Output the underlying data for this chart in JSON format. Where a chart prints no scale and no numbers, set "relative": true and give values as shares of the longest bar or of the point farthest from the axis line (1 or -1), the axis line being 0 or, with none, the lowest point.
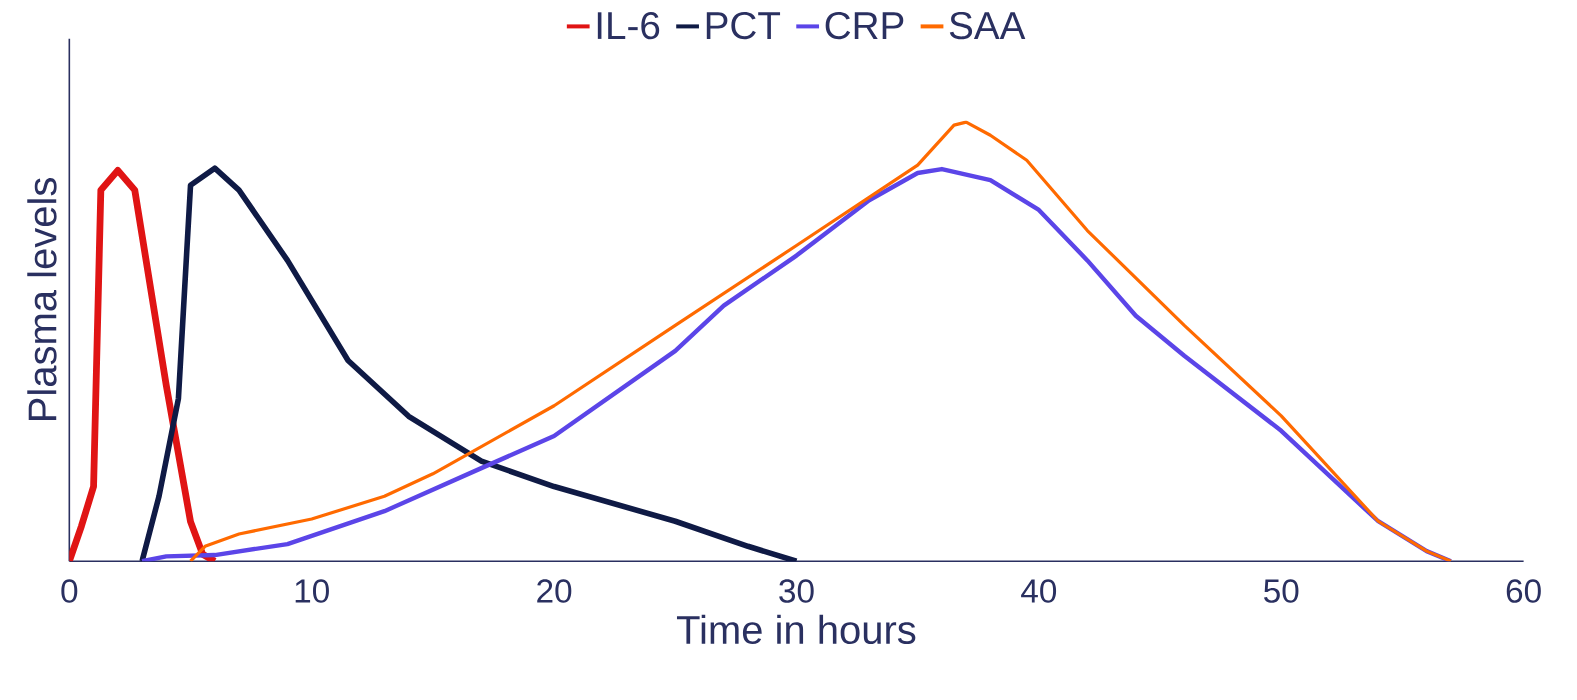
{
  "chart_data": {
    "type": "line",
    "xlabel": "Time in hours",
    "ylabel": "Plasma levels",
    "relative": true,
    "xlim": [
      0,
      60
    ],
    "xticks": [
      0,
      10,
      20,
      30,
      40,
      50,
      60
    ],
    "tick_labels": "x",
    "legend": "top",
    "grid": false,
    "marker": "none",
    "line_style": "solid",
    "series": [
      {
        "name": "IL-6",
        "color": "#e01414",
        "x": [
          0,
          0.5,
          1.0,
          1.3,
          2,
          2.7,
          4,
          5,
          5.5,
          6
        ],
        "values": [
          0,
          0.08,
          0.17,
          0.845,
          0.89,
          0.845,
          0.4,
          0.09,
          0.016,
          0
        ]
      },
      {
        "name": "PCT",
        "color": "#0f1a45",
        "x": [
          3,
          3.7,
          4.5,
          5,
          6,
          7,
          9,
          11.5,
          14,
          17,
          20,
          25,
          28,
          30
        ],
        "values": [
          0,
          0.148,
          0.37,
          0.856,
          0.895,
          0.845,
          0.685,
          0.457,
          0.33,
          0.228,
          0.17,
          0.091,
          0.034,
          0
        ]
      },
      {
        "name": "CRP",
        "color": "#5b45e8",
        "x": [
          3,
          4,
          6,
          9,
          13,
          17,
          20,
          25,
          27,
          30,
          33,
          35,
          36,
          38,
          40,
          42,
          44,
          46,
          50,
          54,
          56,
          57
        ],
        "values": [
          0,
          0.011,
          0.014,
          0.039,
          0.114,
          0.212,
          0.285,
          0.479,
          0.582,
          0.696,
          0.822,
          0.884,
          0.893,
          0.868,
          0.8,
          0.685,
          0.559,
          0.468,
          0.297,
          0.091,
          0.023,
          0
        ]
      },
      {
        "name": "SAA",
        "color": "#ff6a00",
        "x": [
          5,
          5.6,
          7,
          10,
          13,
          15,
          20,
          25,
          30,
          35,
          36.5,
          37,
          38,
          39.5,
          42,
          46,
          50,
          54,
          56,
          57
        ],
        "values": [
          0,
          0.034,
          0.062,
          0.096,
          0.148,
          0.199,
          0.354,
          0.537,
          0.719,
          0.902,
          0.993,
          1.0,
          0.97,
          0.913,
          0.753,
          0.537,
          0.331,
          0.091,
          0.023,
          0
        ]
      }
    ]
  }
}
